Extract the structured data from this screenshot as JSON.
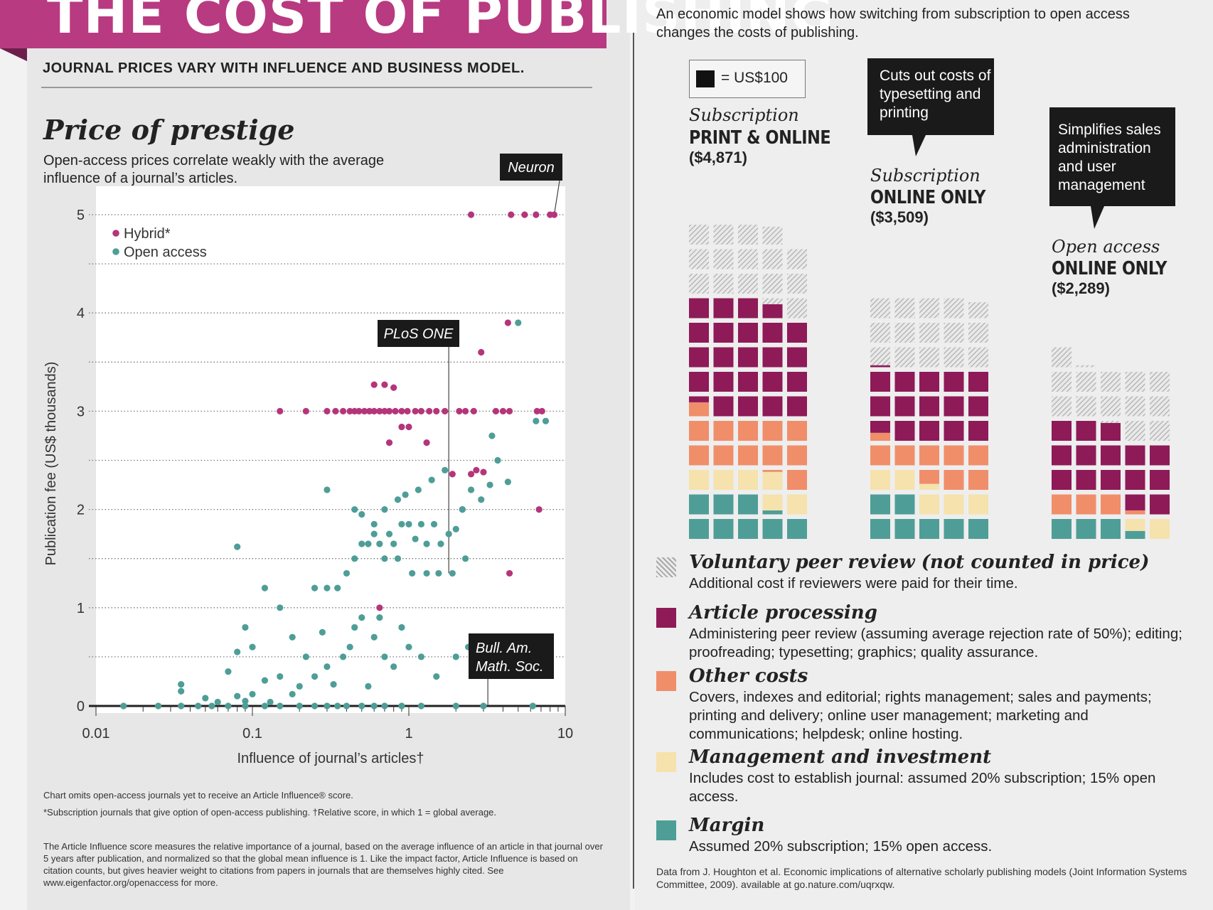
{
  "header": {
    "title": "THE COST OF PUBLISHING",
    "subtitle": "JOURNAL PRICES VARY WITH INFLUENCE AND BUSINESS MODEL."
  },
  "left": {
    "section_title": "Price of prestige",
    "section_desc": "Open-access prices correlate weakly with the average influence of a journal’s articles.",
    "note1": "Chart omits open-access journals yet to receive an Article Influence® score.",
    "note2": "*Subscription journals that give option of open-access publishing. †Relative score, in which 1 = global average.",
    "note3": "The Article Influence score measures the relative importance of a journal, based on the average influence of an article in that journal over 5 years after publication, and normalized so that the global mean influence is 1. Like the impact factor, Article Influence is based on citation counts, but gives heavier weight to citations from papers in journals that are themselves highly cited. See www.eigenfactor.org/openaccess for more."
  },
  "right": {
    "intro": "An economic model shows how switching from subscription to open access changes the costs of publishing.",
    "unit_label": "= US$100",
    "callout1": "Cuts out costs of typesetting and printing",
    "callout2": "Simplifies sales administration and user management",
    "columns": [
      {
        "model": "Subscription",
        "format": "PRINT & ONLINE",
        "cost": "($4,871)"
      },
      {
        "model": "Subscription",
        "format": "ONLINE ONLY",
        "cost": "($3,509)"
      },
      {
        "model": "Open access",
        "format": "ONLINE ONLY",
        "cost": "($2,289)"
      }
    ],
    "legend": [
      {
        "key": "peer",
        "title": "Voluntary peer review (not counted in price)",
        "desc": "Additional cost if reviewers were paid for their time.",
        "color": "hatch"
      },
      {
        "key": "processing",
        "title": "Article processing",
        "desc": "Administering peer review (assuming average rejection rate of 50%); editing; proofreading; typesetting; graphics; quality assurance.",
        "color": "#8e1a58"
      },
      {
        "key": "other",
        "title": "Other costs",
        "desc": "Covers, indexes and editorial; rights management; sales and payments; printing and delivery; online user management; marketing and communications; helpdesk; online hosting.",
        "color": "#f08e6a"
      },
      {
        "key": "mgmt",
        "title": "Management and investment",
        "desc": "Includes cost to establish journal: assumed 20% subscription; 15% open access.",
        "color": "#f5e2ad"
      },
      {
        "key": "margin",
        "title": "Margin",
        "desc": "Assumed 20% subscription; 15% open access.",
        "color": "#4e9e97"
      }
    ],
    "source": "Data from J. Houghton et al. Economic implications of alternative scholarly publishing models (Joint Information Systems Committee, 2009). available at go.nature.com/uqrxqw."
  },
  "chart_data": [
    {
      "type": "scatter",
      "xlabel": "Influence of journal’s articles†",
      "ylabel": "Publication fee (US$ thousands)",
      "xscale": "log",
      "xlim": [
        0.01,
        10
      ],
      "ylim": [
        0,
        5
      ],
      "x_ticks": [
        "0.01",
        "0.1",
        "1",
        "10"
      ],
      "y_ticks": [
        "0",
        "1",
        "2",
        "3",
        "4",
        "5"
      ],
      "grid": "horizontal dotted",
      "legend_position": "top-left",
      "annotations": [
        {
          "label": "Neuron",
          "x": 8.5,
          "y": 5
        },
        {
          "label": "PLoS ONE",
          "x": 1.8,
          "y": 1.35
        },
        {
          "label": "Bull. Am. Math. Soc.",
          "x": 3.2,
          "y": 0
        }
      ],
      "series": [
        {
          "name": "Hybrid*",
          "color": "#b5357a",
          "points": [
            [
              2.5,
              5
            ],
            [
              4.5,
              5
            ],
            [
              5.5,
              5
            ],
            [
              6.5,
              5
            ],
            [
              8,
              5
            ],
            [
              8.5,
              5
            ],
            [
              4.3,
              3.9
            ],
            [
              2.9,
              3.6
            ],
            [
              0.6,
              3.27
            ],
            [
              0.7,
              3.27
            ],
            [
              0.8,
              3.24
            ],
            [
              0.15,
              3
            ],
            [
              0.22,
              3
            ],
            [
              0.3,
              3
            ],
            [
              0.34,
              3
            ],
            [
              0.38,
              3
            ],
            [
              0.42,
              3
            ],
            [
              0.45,
              3
            ],
            [
              0.48,
              3
            ],
            [
              0.52,
              3
            ],
            [
              0.56,
              3
            ],
            [
              0.6,
              3
            ],
            [
              0.65,
              3
            ],
            [
              0.7,
              3
            ],
            [
              0.75,
              3
            ],
            [
              0.82,
              3
            ],
            [
              0.9,
              3
            ],
            [
              0.98,
              3
            ],
            [
              1.1,
              3
            ],
            [
              1.2,
              3
            ],
            [
              1.35,
              3
            ],
            [
              1.5,
              3
            ],
            [
              1.7,
              3
            ],
            [
              2.1,
              3
            ],
            [
              2.3,
              3
            ],
            [
              2.6,
              3
            ],
            [
              3.6,
              3
            ],
            [
              4,
              3
            ],
            [
              4.4,
              3
            ],
            [
              6.6,
              3
            ],
            [
              7.1,
              3
            ],
            [
              0.9,
              2.84
            ],
            [
              1,
              2.84
            ],
            [
              0.75,
              2.68
            ],
            [
              1.3,
              2.68
            ],
            [
              1.9,
              2.36
            ],
            [
              2.7,
              2.4
            ],
            [
              2.5,
              2.36
            ],
            [
              3,
              2.38
            ],
            [
              2.2,
              2
            ],
            [
              6.8,
              2
            ],
            [
              4.4,
              1.35
            ],
            [
              0.65,
              1
            ]
          ]
        },
        {
          "name": "Open access",
          "color": "#4e9e97",
          "points": [
            [
              0.015,
              0
            ],
            [
              0.025,
              0
            ],
            [
              0.035,
              0
            ],
            [
              0.045,
              0
            ],
            [
              0.055,
              0
            ],
            [
              0.07,
              0
            ],
            [
              0.09,
              0
            ],
            [
              0.12,
              0
            ],
            [
              0.15,
              0
            ],
            [
              0.2,
              0
            ],
            [
              0.25,
              0
            ],
            [
              0.3,
              0
            ],
            [
              0.35,
              0
            ],
            [
              0.4,
              0
            ],
            [
              0.5,
              0
            ],
            [
              0.6,
              0
            ],
            [
              0.7,
              0
            ],
            [
              0.9,
              0
            ],
            [
              1.2,
              0
            ],
            [
              2,
              0
            ],
            [
              3,
              0
            ],
            [
              0.035,
              0.22
            ],
            [
              0.035,
              0.15
            ],
            [
              0.05,
              0.08
            ],
            [
              0.06,
              0.04
            ],
            [
              0.08,
              0.1
            ],
            [
              0.09,
              0.05
            ],
            [
              0.1,
              0.12
            ],
            [
              0.12,
              0.26
            ],
            [
              0.13,
              0.04
            ],
            [
              0.15,
              0.3
            ],
            [
              0.18,
              0.12
            ],
            [
              0.2,
              0.2
            ],
            [
              0.22,
              0.5
            ],
            [
              0.25,
              0.3
            ],
            [
              0.3,
              0.4
            ],
            [
              0.33,
              0.22
            ],
            [
              0.38,
              0.5
            ],
            [
              0.42,
              0.6
            ],
            [
              0.45,
              0.8
            ],
            [
              0.5,
              0.9
            ],
            [
              0.55,
              0.2
            ],
            [
              0.6,
              0.7
            ],
            [
              0.65,
              0.9
            ],
            [
              0.7,
              0.5
            ],
            [
              0.8,
              0.4
            ],
            [
              0.9,
              0.8
            ],
            [
              1,
              0.6
            ],
            [
              1.2,
              0.5
            ],
            [
              1.5,
              0.3
            ],
            [
              2,
              0.5
            ],
            [
              2.4,
              0.6
            ],
            [
              0.08,
              0.55
            ],
            [
              0.07,
              0.35
            ],
            [
              0.09,
              0.8
            ],
            [
              0.1,
              0.6
            ],
            [
              0.12,
              1.2
            ],
            [
              0.15,
              1
            ],
            [
              0.18,
              0.7
            ],
            [
              0.25,
              1.2
            ],
            [
              0.28,
              0.75
            ],
            [
              0.3,
              1.2
            ],
            [
              0.35,
              1.2
            ],
            [
              0.4,
              1.35
            ],
            [
              0.45,
              1.5
            ],
            [
              0.5,
              1.65
            ],
            [
              0.55,
              1.65
            ],
            [
              0.6,
              1.75
            ],
            [
              0.65,
              1.65
            ],
            [
              0.7,
              1.5
            ],
            [
              0.75,
              1.75
            ],
            [
              0.8,
              1.65
            ],
            [
              0.85,
              1.5
            ],
            [
              0.9,
              1.85
            ],
            [
              1,
              1.85
            ],
            [
              1.1,
              1.7
            ],
            [
              1.2,
              1.85
            ],
            [
              1.3,
              1.65
            ],
            [
              1.45,
              1.85
            ],
            [
              1.6,
              1.65
            ],
            [
              1.8,
              1.75
            ],
            [
              2,
              1.8
            ],
            [
              2.2,
              2
            ],
            [
              2.5,
              2.2
            ],
            [
              2.9,
              2.1
            ],
            [
              3.3,
              2.25
            ],
            [
              3.7,
              2.5
            ],
            [
              4.3,
              2.28
            ],
            [
              0.45,
              2
            ],
            [
              0.5,
              1.95
            ],
            [
              0.6,
              1.85
            ],
            [
              0.7,
              2
            ],
            [
              0.85,
              2.1
            ],
            [
              0.95,
              2.15
            ],
            [
              1.15,
              2.2
            ],
            [
              1.4,
              2.3
            ],
            [
              1.7,
              2.4
            ],
            [
              0.3,
              2.2
            ],
            [
              0.08,
              1.62
            ],
            [
              1.05,
              1.35
            ],
            [
              1.3,
              1.35
            ],
            [
              1.55,
              1.35
            ],
            [
              1.9,
              1.35
            ],
            [
              2.3,
              1.5
            ],
            [
              3.4,
              2.75
            ],
            [
              6.5,
              2.9
            ],
            [
              7.5,
              2.9
            ],
            [
              5,
              3.9
            ],
            [
              6.2,
              0
            ]
          ]
        }
      ]
    },
    {
      "type": "waffle",
      "unit": "US$100",
      "categories": [
        "Subscription PRINT & ONLINE",
        "Subscription ONLINE ONLY",
        "Open access ONLINE ONLY"
      ],
      "totals": [
        4871,
        3509,
        2289
      ],
      "series": [
        {
          "name": "Margin",
          "values": [
            820,
            700,
            340
          ]
        },
        {
          "name": "Management and investment",
          "values": [
            570,
            530,
            160
          ]
        },
        {
          "name": "Other costs",
          "values": [
            1180,
            810,
            320
          ]
        },
        {
          "name": "Article processing",
          "values": [
            2300,
            1470,
            1470
          ]
        },
        {
          "name": "Voluntary peer review (not counted in price)",
          "values": [
            1520,
            1470,
            1320
          ]
        }
      ]
    }
  ]
}
